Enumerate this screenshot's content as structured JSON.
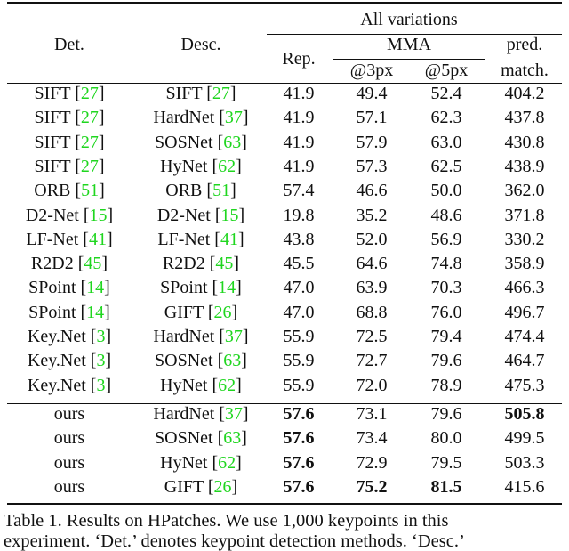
{
  "header": {
    "group": "All variations",
    "det": "Det.",
    "desc": "Desc.",
    "rep": "Rep.",
    "mma": "MMA",
    "px3": "@3px",
    "px5": "@5px",
    "pred1": "pred.",
    "pred2": "match."
  },
  "rows": [
    {
      "det": "SIFT",
      "det_ref": "27",
      "desc": "SIFT",
      "desc_ref": "27",
      "rep": "41.9",
      "px3": "49.4",
      "px5": "52.4",
      "pred": "404.2"
    },
    {
      "det": "SIFT",
      "det_ref": "27",
      "desc": "HardNet",
      "desc_ref": "37",
      "rep": "41.9",
      "px3": "57.1",
      "px5": "62.3",
      "pred": "437.8"
    },
    {
      "det": "SIFT",
      "det_ref": "27",
      "desc": "SOSNet",
      "desc_ref": "63",
      "rep": "41.9",
      "px3": "57.9",
      "px5": "63.0",
      "pred": "430.8"
    },
    {
      "det": "SIFT",
      "det_ref": "27",
      "desc": "HyNet",
      "desc_ref": "62",
      "rep": "41.9",
      "px3": "57.3",
      "px5": "62.5",
      "pred": "438.9"
    },
    {
      "det": "ORB",
      "det_ref": "51",
      "desc": "ORB",
      "desc_ref": "51",
      "rep": "57.4",
      "px3": "46.6",
      "px5": "50.0",
      "pred": "362.0"
    },
    {
      "det": "D2-Net",
      "det_ref": "15",
      "desc": "D2-Net",
      "desc_ref": "15",
      "rep": "19.8",
      "px3": "35.2",
      "px5": "48.6",
      "pred": "371.8"
    },
    {
      "det": "LF-Net",
      "det_ref": "41",
      "desc": "LF-Net",
      "desc_ref": "41",
      "rep": "43.8",
      "px3": "52.0",
      "px5": "56.9",
      "pred": "330.2"
    },
    {
      "det": "R2D2",
      "det_ref": "45",
      "desc": "R2D2",
      "desc_ref": "45",
      "rep": "45.5",
      "px3": "64.6",
      "px5": "74.8",
      "pred": "358.9"
    },
    {
      "det": "SPoint",
      "det_ref": "14",
      "desc": "SPoint",
      "desc_ref": "14",
      "rep": "47.0",
      "px3": "63.9",
      "px5": "70.3",
      "pred": "466.3"
    },
    {
      "det": "SPoint",
      "det_ref": "14",
      "desc": "GIFT",
      "desc_ref": "26",
      "rep": "47.0",
      "px3": "68.8",
      "px5": "76.0",
      "pred": "496.7"
    },
    {
      "det": "Key.Net",
      "det_ref": "3",
      "desc": "HardNet",
      "desc_ref": "37",
      "rep": "55.9",
      "px3": "72.5",
      "px5": "79.4",
      "pred": "474.4"
    },
    {
      "det": "Key.Net",
      "det_ref": "3",
      "desc": "SOSNet",
      "desc_ref": "63",
      "rep": "55.9",
      "px3": "72.7",
      "px5": "79.6",
      "pred": "464.7"
    },
    {
      "det": "Key.Net",
      "det_ref": "3",
      "desc": "HyNet",
      "desc_ref": "62",
      "rep": "55.9",
      "px3": "72.0",
      "px5": "78.9",
      "pred": "475.3"
    },
    {
      "det": "ours",
      "desc": "HardNet",
      "desc_ref": "37",
      "rep": "57.6",
      "px3": "73.1",
      "px5": "79.6",
      "pred": "505.8",
      "bold": [
        "rep",
        "pred"
      ]
    },
    {
      "det": "ours",
      "desc": "SOSNet",
      "desc_ref": "63",
      "rep": "57.6",
      "px3": "73.4",
      "px5": "80.0",
      "pred": "499.5",
      "bold": [
        "rep"
      ]
    },
    {
      "det": "ours",
      "desc": "HyNet",
      "desc_ref": "62",
      "rep": "57.6",
      "px3": "72.9",
      "px5": "79.5",
      "pred": "503.3",
      "bold": [
        "rep"
      ]
    },
    {
      "det": "ours",
      "desc": "GIFT",
      "desc_ref": "26",
      "rep": "57.6",
      "px3": "75.2",
      "px5": "81.5",
      "pred": "415.6",
      "bold": [
        "rep",
        "px3",
        "px5"
      ]
    }
  ],
  "caption": {
    "line1": "Table 1.  Results on HPatches.  We use 1,000 keypoints in this",
    "line2": "experiment. ‘Det.’ denotes keypoint detection methods. ‘Desc.’"
  },
  "colors": {
    "ref": "#1fd61f",
    "text": "#111111"
  }
}
